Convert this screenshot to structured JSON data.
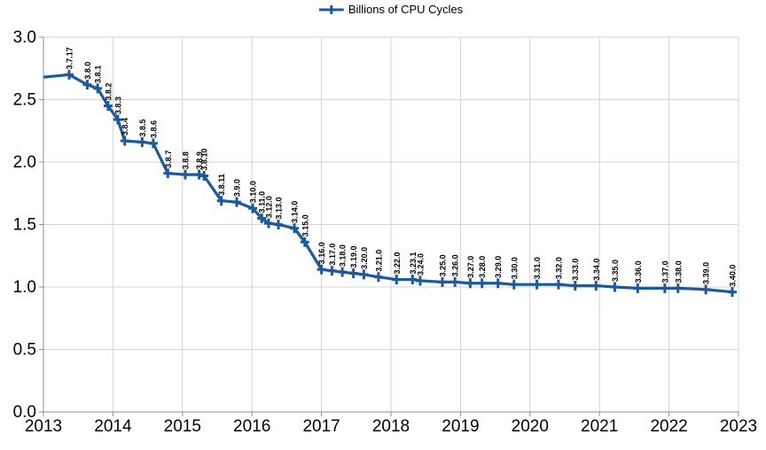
{
  "legend": {
    "series_label": "Billions of CPU Cycles"
  },
  "colors": {
    "series": "#1d5a99",
    "grid": "#d3d3d3",
    "axis": "#8f8f8f",
    "text": "#000000"
  },
  "chart_data": {
    "type": "line",
    "title": "",
    "xlabel": "",
    "ylabel": "",
    "xlim": [
      2013,
      2023
    ],
    "ylim": [
      0.0,
      3.0
    ],
    "grid": true,
    "legend_position": "top-center",
    "marker": "plus",
    "data_label_rotation_deg": 90,
    "x_ticks": [
      2013,
      2014,
      2015,
      2016,
      2017,
      2018,
      2019,
      2020,
      2021,
      2022,
      2023
    ],
    "x_tick_labels": [
      "2013",
      "2014",
      "2015",
      "2016",
      "2017",
      "2018",
      "2019",
      "2020",
      "2021",
      "2022",
      "2023"
    ],
    "y_ticks": [
      0.0,
      0.5,
      1.0,
      1.5,
      2.0,
      2.5,
      3.0
    ],
    "y_tick_labels": [
      "0.0",
      "0.5",
      "1.0",
      "1.5",
      "2.0",
      "2.5",
      "3.0"
    ],
    "series": [
      {
        "name": "Billions of CPU Cycles",
        "points": [
          {
            "label": "",
            "x": 2013.0,
            "y": 2.68
          },
          {
            "label": "3.7.17",
            "x": 2013.37,
            "y": 2.7
          },
          {
            "label": "3.8.0",
            "x": 2013.63,
            "y": 2.62
          },
          {
            "label": "3.8.1",
            "x": 2013.78,
            "y": 2.59
          },
          {
            "label": "3.8.2",
            "x": 2013.93,
            "y": 2.45
          },
          {
            "label": "3.8.3",
            "x": 2014.07,
            "y": 2.34
          },
          {
            "label": "3.8.4",
            "x": 2014.17,
            "y": 2.17
          },
          {
            "label": "3.8.5",
            "x": 2014.42,
            "y": 2.16
          },
          {
            "label": "3.8.6",
            "x": 2014.58,
            "y": 2.15
          },
          {
            "label": "3.8.7",
            "x": 2014.79,
            "y": 1.91
          },
          {
            "label": "3.8.8",
            "x": 2015.04,
            "y": 1.9
          },
          {
            "label": "3.8.9",
            "x": 2015.24,
            "y": 1.9
          },
          {
            "label": "3.8.10",
            "x": 2015.31,
            "y": 1.89
          },
          {
            "label": "3.8.11",
            "x": 2015.56,
            "y": 1.69
          },
          {
            "label": "3.9.0",
            "x": 2015.78,
            "y": 1.68
          },
          {
            "label": "3.10.0",
            "x": 2016.01,
            "y": 1.63
          },
          {
            "label": "3.11.0",
            "x": 2016.14,
            "y": 1.55
          },
          {
            "label": "3.12.0",
            "x": 2016.24,
            "y": 1.51
          },
          {
            "label": "3.13.0",
            "x": 2016.38,
            "y": 1.5
          },
          {
            "label": "3.14.0",
            "x": 2016.61,
            "y": 1.47
          },
          {
            "label": "3.15.0",
            "x": 2016.76,
            "y": 1.36
          },
          {
            "label": "3.16.0",
            "x": 2017.0,
            "y": 1.14
          },
          {
            "label": "3.17.0",
            "x": 2017.15,
            "y": 1.13
          },
          {
            "label": "3.18.0",
            "x": 2017.3,
            "y": 1.12
          },
          {
            "label": "3.19.0",
            "x": 2017.46,
            "y": 1.11
          },
          {
            "label": "3.20.0",
            "x": 2017.61,
            "y": 1.1
          },
          {
            "label": "3.21.0",
            "x": 2017.82,
            "y": 1.08
          },
          {
            "label": "3.22.0",
            "x": 2018.08,
            "y": 1.06
          },
          {
            "label": "3.23.1",
            "x": 2018.31,
            "y": 1.06
          },
          {
            "label": "3.24.0",
            "x": 2018.42,
            "y": 1.05
          },
          {
            "label": "3.25.0",
            "x": 2018.74,
            "y": 1.04
          },
          {
            "label": "3.26.0",
            "x": 2018.92,
            "y": 1.04
          },
          {
            "label": "3.27.0",
            "x": 2019.14,
            "y": 1.03
          },
          {
            "label": "3.28.0",
            "x": 2019.31,
            "y": 1.03
          },
          {
            "label": "3.29.0",
            "x": 2019.54,
            "y": 1.03
          },
          {
            "label": "3.30.0",
            "x": 2019.77,
            "y": 1.02
          },
          {
            "label": "3.31.0",
            "x": 2020.1,
            "y": 1.02
          },
          {
            "label": "3.32.0",
            "x": 2020.41,
            "y": 1.02
          },
          {
            "label": "3.33.0",
            "x": 2020.65,
            "y": 1.01
          },
          {
            "label": "3.34.0",
            "x": 2020.95,
            "y": 1.01
          },
          {
            "label": "3.35.0",
            "x": 2021.22,
            "y": 1.0
          },
          {
            "label": "3.36.0",
            "x": 2021.55,
            "y": 0.99
          },
          {
            "label": "3.37.0",
            "x": 2021.94,
            "y": 0.99
          },
          {
            "label": "3.38.0",
            "x": 2022.13,
            "y": 0.99
          },
          {
            "label": "3.39.0",
            "x": 2022.53,
            "y": 0.98
          },
          {
            "label": "3.40.0",
            "x": 2022.91,
            "y": 0.96
          }
        ]
      }
    ]
  }
}
